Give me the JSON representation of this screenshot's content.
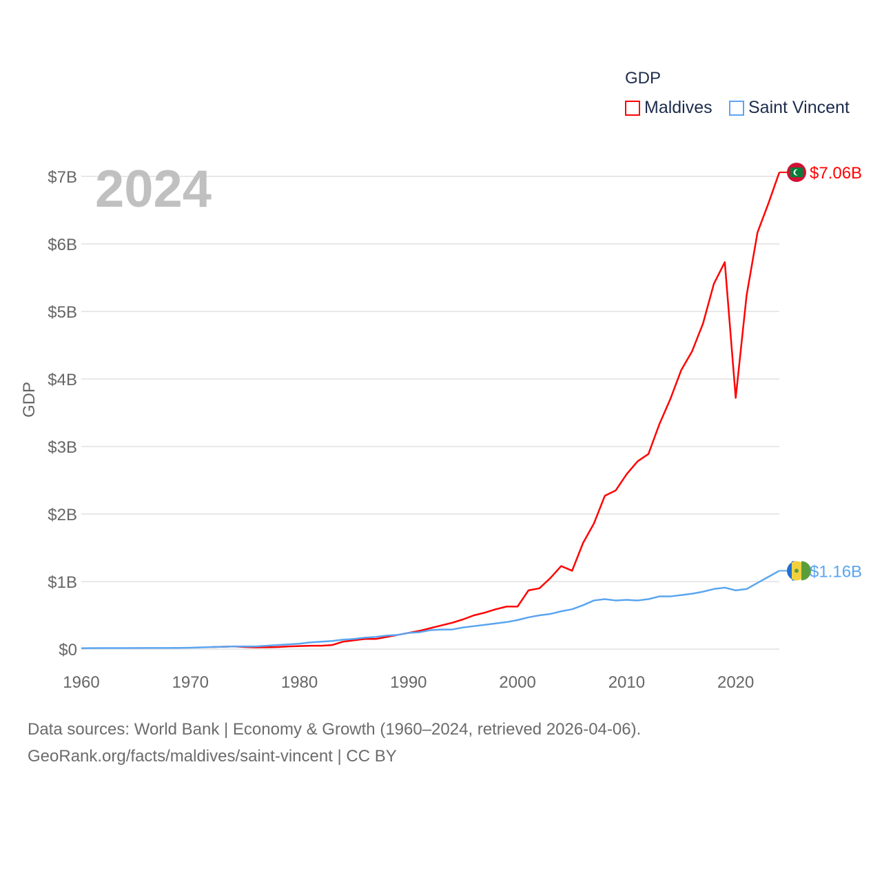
{
  "legend": {
    "title": "GDP",
    "items": [
      {
        "label": "Maldives",
        "color": "#ff0000"
      },
      {
        "label": "Saint Vincent",
        "color": "#5aa5f0"
      }
    ]
  },
  "footer": {
    "line1": "Data sources: World Bank | Economy & Growth (1960–2024, retrieved 2026-04-06).",
    "line2": "GeoRank.org/facts/maldives/saint-vincent | CC BY"
  },
  "chart_data": {
    "type": "line",
    "title": "GDP",
    "year_watermark": "2024",
    "xlabel": "",
    "ylabel": "GDP",
    "xlim": [
      1960,
      2024
    ],
    "ylim": [
      0,
      7
    ],
    "xticks": [
      1960,
      1970,
      1980,
      1990,
      2000,
      2010,
      2020
    ],
    "xtick_labels": [
      "1960",
      "1970",
      "1980",
      "1990",
      "2000",
      "2010",
      "2020"
    ],
    "yticks": [
      0,
      1,
      2,
      3,
      4,
      5,
      6,
      7
    ],
    "ytick_labels": [
      "$0",
      "$1B",
      "$2B",
      "$3B",
      "$4B",
      "$5B",
      "$6B",
      "$7B"
    ],
    "grid": true,
    "legend_position": "top-right",
    "series": [
      {
        "name": "Maldives",
        "color": "#ff0000",
        "end_label": "$7.06B",
        "x": [
          1972,
          1973,
          1974,
          1975,
          1976,
          1977,
          1978,
          1979,
          1980,
          1981,
          1982,
          1983,
          1984,
          1985,
          1986,
          1987,
          1988,
          1989,
          1990,
          1991,
          1992,
          1993,
          1994,
          1995,
          1996,
          1997,
          1998,
          1999,
          2000,
          2001,
          2002,
          2003,
          2004,
          2005,
          2006,
          2007,
          2008,
          2009,
          2010,
          2011,
          2012,
          2013,
          2014,
          2015,
          2016,
          2017,
          2018,
          2019,
          2020,
          2021,
          2022,
          2023,
          2024
        ],
        "values": [
          0.03,
          0.035,
          0.04,
          0.03,
          0.025,
          0.027,
          0.03,
          0.04,
          0.045,
          0.05,
          0.05,
          0.06,
          0.11,
          0.13,
          0.15,
          0.15,
          0.18,
          0.21,
          0.24,
          0.27,
          0.31,
          0.35,
          0.39,
          0.44,
          0.5,
          0.54,
          0.59,
          0.63,
          0.63,
          0.87,
          0.9,
          1.05,
          1.23,
          1.16,
          1.57,
          1.86,
          2.27,
          2.35,
          2.59,
          2.78,
          2.89,
          3.33,
          3.7,
          4.13,
          4.41,
          4.82,
          5.41,
          5.73,
          3.72,
          5.24,
          6.17,
          6.6,
          7.06
        ]
      },
      {
        "name": "Saint Vincent",
        "color": "#5aa5f0",
        "end_label": "$1.16B",
        "x": [
          1960,
          1962,
          1964,
          1966,
          1968,
          1970,
          1972,
          1974,
          1976,
          1978,
          1980,
          1981,
          1982,
          1983,
          1984,
          1985,
          1986,
          1987,
          1988,
          1989,
          1990,
          1991,
          1992,
          1993,
          1994,
          1995,
          1996,
          1997,
          1998,
          1999,
          2000,
          2001,
          2002,
          2003,
          2004,
          2005,
          2006,
          2007,
          2008,
          2009,
          2010,
          2011,
          2012,
          2013,
          2014,
          2015,
          2016,
          2017,
          2018,
          2019,
          2020,
          2021,
          2022,
          2023,
          2024
        ],
        "values": [
          0.013,
          0.015,
          0.015,
          0.016,
          0.016,
          0.02,
          0.03,
          0.04,
          0.04,
          0.06,
          0.08,
          0.1,
          0.11,
          0.12,
          0.14,
          0.15,
          0.17,
          0.18,
          0.2,
          0.21,
          0.24,
          0.25,
          0.28,
          0.29,
          0.29,
          0.32,
          0.34,
          0.36,
          0.38,
          0.4,
          0.43,
          0.47,
          0.5,
          0.52,
          0.56,
          0.59,
          0.65,
          0.72,
          0.74,
          0.72,
          0.73,
          0.72,
          0.74,
          0.78,
          0.78,
          0.8,
          0.82,
          0.85,
          0.89,
          0.91,
          0.87,
          0.89,
          0.98,
          1.07,
          1.16
        ]
      }
    ]
  }
}
